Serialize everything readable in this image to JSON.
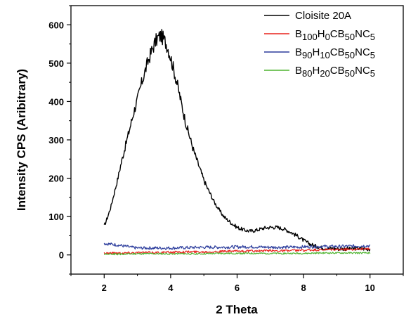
{
  "chart_data": {
    "type": "line",
    "title": "",
    "xlabel": "2 Theta",
    "ylabel": "Intensity CPS (Aribitrary)",
    "xlim": [
      1,
      11
    ],
    "ylim": [
      -50,
      650
    ],
    "x_ticks": [
      2,
      4,
      6,
      8,
      10
    ],
    "y_ticks": [
      0,
      100,
      200,
      300,
      400,
      500,
      600
    ],
    "grid": false,
    "legend_position": "top-right",
    "series": [
      {
        "name": "Cloisite 20A",
        "color": "#000000",
        "points": [
          [
            2.0,
            75
          ],
          [
            2.1,
            98
          ],
          [
            2.2,
            125
          ],
          [
            2.3,
            160
          ],
          [
            2.4,
            195
          ],
          [
            2.5,
            235
          ],
          [
            2.6,
            270
          ],
          [
            2.7,
            305
          ],
          [
            2.8,
            340
          ],
          [
            2.9,
            375
          ],
          [
            3.0,
            405
          ],
          [
            3.1,
            440
          ],
          [
            3.2,
            470
          ],
          [
            3.3,
            500
          ],
          [
            3.4,
            525
          ],
          [
            3.5,
            548
          ],
          [
            3.6,
            565
          ],
          [
            3.7,
            572
          ],
          [
            3.8,
            562
          ],
          [
            3.9,
            545
          ],
          [
            4.0,
            515
          ],
          [
            4.1,
            480
          ],
          [
            4.2,
            445
          ],
          [
            4.3,
            405
          ],
          [
            4.4,
            365
          ],
          [
            4.5,
            330
          ],
          [
            4.6,
            300
          ],
          [
            4.7,
            270
          ],
          [
            4.8,
            245
          ],
          [
            4.9,
            220
          ],
          [
            5.0,
            195
          ],
          [
            5.1,
            175
          ],
          [
            5.2,
            158
          ],
          [
            5.3,
            140
          ],
          [
            5.4,
            125
          ],
          [
            5.5,
            112
          ],
          [
            5.6,
            100
          ],
          [
            5.7,
            92
          ],
          [
            5.8,
            85
          ],
          [
            5.9,
            78
          ],
          [
            6.0,
            72
          ],
          [
            6.2,
            65
          ],
          [
            6.4,
            62
          ],
          [
            6.6,
            65
          ],
          [
            6.8,
            70
          ],
          [
            7.0,
            72
          ],
          [
            7.2,
            72
          ],
          [
            7.4,
            68
          ],
          [
            7.6,
            60
          ],
          [
            7.8,
            50
          ],
          [
            8.0,
            38
          ],
          [
            8.2,
            28
          ],
          [
            8.4,
            22
          ],
          [
            8.6,
            18
          ],
          [
            8.8,
            17
          ],
          [
            9.0,
            16
          ],
          [
            9.2,
            16
          ],
          [
            9.4,
            16
          ],
          [
            9.6,
            17
          ],
          [
            9.8,
            16
          ],
          [
            10.0,
            15
          ]
        ]
      },
      {
        "name": "B100H0CB50NC5",
        "color": "#e8221c",
        "points": [
          [
            2.0,
            5
          ],
          [
            2.5,
            5
          ],
          [
            3.0,
            6
          ],
          [
            3.5,
            6
          ],
          [
            4.0,
            7
          ],
          [
            4.5,
            8
          ],
          [
            5.0,
            8
          ],
          [
            5.5,
            9
          ],
          [
            6.0,
            10
          ],
          [
            6.5,
            10
          ],
          [
            7.0,
            11
          ],
          [
            7.5,
            11
          ],
          [
            8.0,
            12
          ],
          [
            8.5,
            13
          ],
          [
            9.0,
            14
          ],
          [
            9.5,
            15
          ],
          [
            10.0,
            16
          ]
        ]
      },
      {
        "name": "B90H10CB50NC5",
        "color": "#2b3c9c",
        "points": [
          [
            2.0,
            30
          ],
          [
            2.2,
            28
          ],
          [
            2.4,
            26
          ],
          [
            2.6,
            23
          ],
          [
            2.8,
            20
          ],
          [
            3.0,
            18
          ],
          [
            3.5,
            18
          ],
          [
            4.0,
            18
          ],
          [
            4.5,
            19
          ],
          [
            5.0,
            20
          ],
          [
            5.5,
            20
          ],
          [
            6.0,
            21
          ],
          [
            6.5,
            21
          ],
          [
            7.0,
            20
          ],
          [
            7.5,
            20
          ],
          [
            8.0,
            21
          ],
          [
            8.5,
            22
          ],
          [
            9.0,
            22
          ],
          [
            9.5,
            23
          ],
          [
            10.0,
            24
          ]
        ]
      },
      {
        "name": "B80H20CB50NC5",
        "color": "#4db32f",
        "points": [
          [
            2.0,
            2
          ],
          [
            2.5,
            2
          ],
          [
            3.0,
            3
          ],
          [
            3.5,
            3
          ],
          [
            4.0,
            3
          ],
          [
            4.5,
            3
          ],
          [
            5.0,
            3
          ],
          [
            5.5,
            4
          ],
          [
            6.0,
            4
          ],
          [
            6.5,
            4
          ],
          [
            7.0,
            4
          ],
          [
            7.5,
            4
          ],
          [
            8.0,
            4
          ],
          [
            8.5,
            5
          ],
          [
            9.0,
            5
          ],
          [
            9.5,
            5
          ],
          [
            10.0,
            5
          ]
        ]
      }
    ],
    "legend": [
      {
        "series": 0,
        "parts": [
          {
            "t": "Cloisite 20A",
            "sub": false
          }
        ]
      },
      {
        "series": 1,
        "parts": [
          {
            "t": "B",
            "sub": false
          },
          {
            "t": "100",
            "sub": true
          },
          {
            "t": "H",
            "sub": false
          },
          {
            "t": "0",
            "sub": true
          },
          {
            "t": "CB",
            "sub": false
          },
          {
            "t": "50",
            "sub": true
          },
          {
            "t": "NC",
            "sub": false
          },
          {
            "t": "5",
            "sub": true
          }
        ]
      },
      {
        "series": 2,
        "parts": [
          {
            "t": "B",
            "sub": false
          },
          {
            "t": "90",
            "sub": true
          },
          {
            "t": "H",
            "sub": false
          },
          {
            "t": "10",
            "sub": true
          },
          {
            "t": "CB",
            "sub": false
          },
          {
            "t": "50",
            "sub": true
          },
          {
            "t": "NC",
            "sub": false
          },
          {
            "t": "5",
            "sub": true
          }
        ]
      },
      {
        "series": 3,
        "parts": [
          {
            "t": "B",
            "sub": false
          },
          {
            "t": "80",
            "sub": true
          },
          {
            "t": "H",
            "sub": false
          },
          {
            "t": "20",
            "sub": true
          },
          {
            "t": "CB",
            "sub": false
          },
          {
            "t": "50",
            "sub": true
          },
          {
            "t": "NC",
            "sub": false
          },
          {
            "t": "5",
            "sub": true
          }
        ]
      }
    ]
  }
}
